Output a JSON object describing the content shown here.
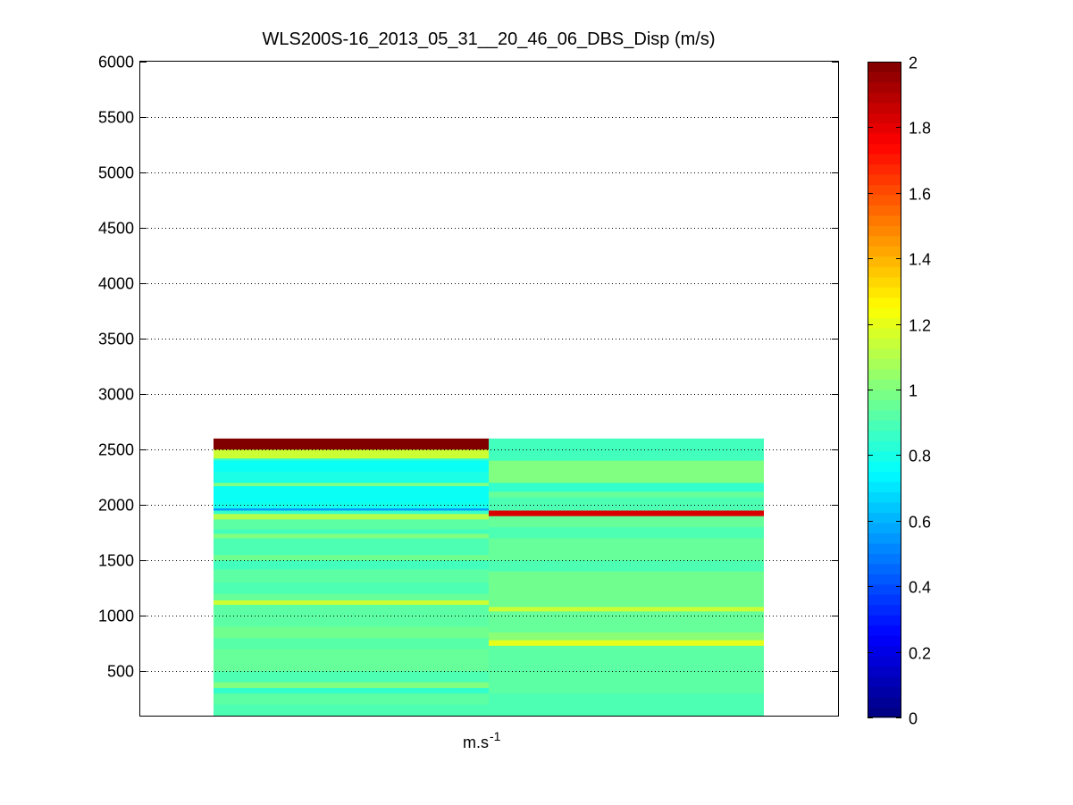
{
  "chart_data": {
    "type": "heatmap",
    "title": "WLS200S-16_2013_05_31__20_46_06_DBS_Disp (m/s)",
    "xlabel": "m.s",
    "xlabel_superscript": "-1",
    "ylabel": "",
    "ylim": [
      100,
      6000
    ],
    "yticks": [
      500,
      1000,
      1500,
      2000,
      2500,
      3000,
      3500,
      4000,
      4500,
      5000,
      5500,
      6000
    ],
    "grid": "horizontal dotted",
    "colormap": "jet",
    "clim": [
      0,
      2
    ],
    "colorbar_ticks": [
      0,
      0.2,
      0.4,
      0.6,
      0.8,
      1,
      1.2,
      1.4,
      1.6,
      1.8,
      2
    ],
    "columns": [
      {
        "segments": [
          {
            "y0": 2500,
            "y1": 2600,
            "value": 2.0
          },
          {
            "y0": 2420,
            "y1": 2500,
            "value": 1.15
          },
          {
            "y0": 2400,
            "y1": 2420,
            "value": 0.85
          },
          {
            "y0": 2300,
            "y1": 2400,
            "value": 0.77
          },
          {
            "y0": 2200,
            "y1": 2300,
            "value": 0.8
          },
          {
            "y0": 2170,
            "y1": 2200,
            "value": 1.0
          },
          {
            "y0": 2020,
            "y1": 2170,
            "value": 0.77
          },
          {
            "y0": 1970,
            "y1": 2020,
            "value": 0.79
          },
          {
            "y0": 1950,
            "y1": 1970,
            "value": 0.55
          },
          {
            "y0": 1920,
            "y1": 1950,
            "value": 0.85
          },
          {
            "y0": 1870,
            "y1": 1920,
            "value": 1.1
          },
          {
            "y0": 1780,
            "y1": 1870,
            "value": 0.93
          },
          {
            "y0": 1740,
            "y1": 1780,
            "value": 0.88
          },
          {
            "y0": 1700,
            "y1": 1740,
            "value": 1.0
          },
          {
            "y0": 1550,
            "y1": 1700,
            "value": 0.9
          },
          {
            "y0": 1500,
            "y1": 1550,
            "value": 0.97
          },
          {
            "y0": 1420,
            "y1": 1500,
            "value": 0.88
          },
          {
            "y0": 1300,
            "y1": 1420,
            "value": 0.93
          },
          {
            "y0": 1200,
            "y1": 1300,
            "value": 0.9
          },
          {
            "y0": 1140,
            "y1": 1200,
            "value": 0.95
          },
          {
            "y0": 1100,
            "y1": 1140,
            "value": 1.15
          },
          {
            "y0": 900,
            "y1": 1100,
            "value": 0.93
          },
          {
            "y0": 800,
            "y1": 900,
            "value": 0.97
          },
          {
            "y0": 700,
            "y1": 800,
            "value": 0.92
          },
          {
            "y0": 500,
            "y1": 700,
            "value": 0.95
          },
          {
            "y0": 400,
            "y1": 500,
            "value": 0.9
          },
          {
            "y0": 350,
            "y1": 400,
            "value": 1.0
          },
          {
            "y0": 300,
            "y1": 350,
            "value": 0.85
          },
          {
            "y0": 200,
            "y1": 300,
            "value": 0.93
          },
          {
            "y0": 100,
            "y1": 200,
            "value": 0.9
          }
        ]
      },
      {
        "segments": [
          {
            "y0": 2400,
            "y1": 2600,
            "value": 0.88
          },
          {
            "y0": 2200,
            "y1": 2400,
            "value": 1.0
          },
          {
            "y0": 2120,
            "y1": 2200,
            "value": 0.85
          },
          {
            "y0": 2070,
            "y1": 2120,
            "value": 0.95
          },
          {
            "y0": 1950,
            "y1": 2070,
            "value": 0.9
          },
          {
            "y0": 1900,
            "y1": 1950,
            "value": 1.82
          },
          {
            "y0": 1800,
            "y1": 1900,
            "value": 0.95
          },
          {
            "y0": 1700,
            "y1": 1800,
            "value": 0.9
          },
          {
            "y0": 1500,
            "y1": 1700,
            "value": 0.95
          },
          {
            "y0": 1400,
            "y1": 1500,
            "value": 0.9
          },
          {
            "y0": 1080,
            "y1": 1400,
            "value": 0.97
          },
          {
            "y0": 1040,
            "y1": 1080,
            "value": 1.15
          },
          {
            "y0": 850,
            "y1": 1040,
            "value": 0.95
          },
          {
            "y0": 780,
            "y1": 850,
            "value": 1.02
          },
          {
            "y0": 730,
            "y1": 780,
            "value": 1.2
          },
          {
            "y0": 300,
            "y1": 730,
            "value": 0.93
          },
          {
            "y0": 100,
            "y1": 300,
            "value": 0.9
          }
        ]
      }
    ]
  }
}
